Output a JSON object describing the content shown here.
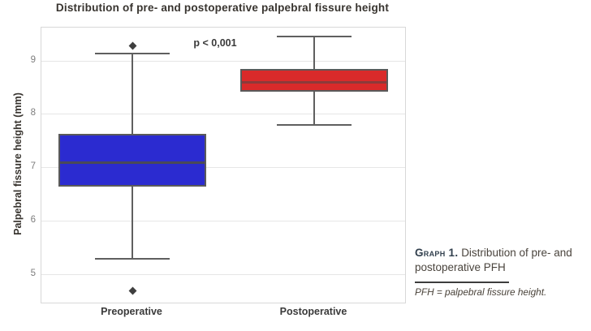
{
  "caption": {
    "label": "Graph 1.",
    "text": "Distribution of pre- and postoperative PFH",
    "footnote": "PFH = palpebral fissure height."
  },
  "chart_data": {
    "type": "box",
    "title": "Distribution of pre- and postoperative palpebral fissure height",
    "xlabel": "",
    "ylabel": "Palpebral fissure height (mm)",
    "annotation": "p < 0,001",
    "categories": [
      "Preoperative",
      "Postoperative"
    ],
    "yticks": [
      9,
      8,
      7,
      6,
      5
    ],
    "ylim": [
      4.46,
      9.62
    ],
    "grid": true,
    "legend": false,
    "series": [
      {
        "name": "Preoperative",
        "color": "#2b2bd0",
        "median_color": "#4a4a58",
        "whisker_low": 5.28,
        "q1": 6.63,
        "median": 7.08,
        "q3": 7.63,
        "whisker_high": 9.13,
        "outliers": [
          9.28,
          4.68
        ]
      },
      {
        "name": "Postoperative",
        "color": "#d92a2a",
        "median_color": "#8c3a3a",
        "whisker_low": 7.79,
        "q1": 8.41,
        "median": 8.59,
        "q3": 8.84,
        "whisker_high": 9.46,
        "outliers": []
      }
    ]
  },
  "colors": {
    "box_stroke": "#5a5a5a",
    "grid_line": "#e6e6e6",
    "plot_border": "#d8d8d8",
    "outlier": "#3f3f3f",
    "caption_label": "#32404e"
  }
}
